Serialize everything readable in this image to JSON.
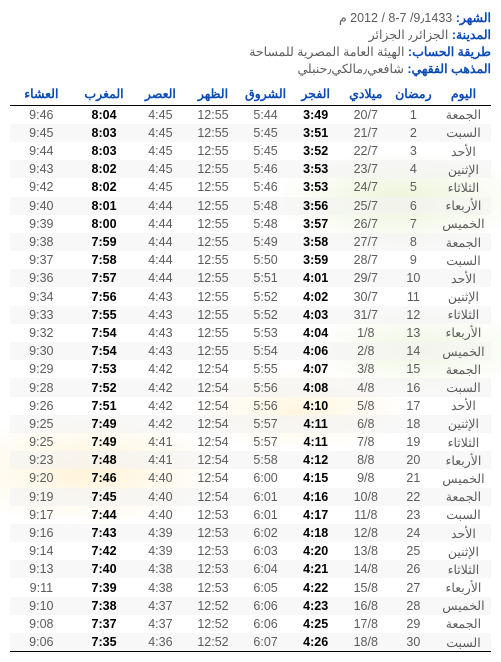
{
  "header": {
    "month_label": "الشهر:",
    "month_value": "9٫1433/ 7-8 / 2012 م",
    "city_label": "المدينة:",
    "city_value": "الجزائر٫ الجزائر",
    "calc_label": "طريقة الحساب:",
    "calc_value": "الهيئة العامة المصرية للمساحة",
    "madhab_label": "المذهب الفقهي:",
    "madhab_value": "شافعي٫مالكي٫حنبلي"
  },
  "columns": [
    "اليوم",
    "رمضان",
    "ميلادي",
    "الفجر",
    "الشروق",
    "الظهر",
    "العصر",
    "المغرب",
    "العشاء"
  ],
  "col_widths": [
    "11%",
    "9%",
    "10%",
    "10%",
    "10%",
    "11%",
    "10%",
    "12.5%",
    "12.5%"
  ],
  "bold_cols": [
    3,
    7
  ],
  "rows": [
    [
      "الجمعة",
      "1",
      "20/7",
      "3:49",
      "5:44",
      "12:55",
      "4:45",
      "8:04",
      "9:46"
    ],
    [
      "السبت",
      "2",
      "21/7",
      "3:51",
      "5:45",
      "12:55",
      "4:45",
      "8:03",
      "9:45"
    ],
    [
      "الأحد",
      "3",
      "22/7",
      "3:52",
      "5:45",
      "12:55",
      "4:45",
      "8:03",
      "9:44"
    ],
    [
      "الإثنين",
      "4",
      "23/7",
      "3:53",
      "5:46",
      "12:55",
      "4:45",
      "8:02",
      "9:43"
    ],
    [
      "الثلاثاء",
      "5",
      "24/7",
      "3:53",
      "5:46",
      "12:55",
      "4:45",
      "8:02",
      "9:42"
    ],
    [
      "الأربعاء",
      "6",
      "25/7",
      "3:56",
      "5:48",
      "12:55",
      "4:44",
      "8:01",
      "9:40"
    ],
    [
      "الخميس",
      "7",
      "26/7",
      "3:57",
      "5:48",
      "12:55",
      "4:44",
      "8:00",
      "9:39"
    ],
    [
      "الجمعة",
      "8",
      "27/7",
      "3:58",
      "5:49",
      "12:55",
      "4:44",
      "7:59",
      "9:38"
    ],
    [
      "السبت",
      "9",
      "28/7",
      "3:59",
      "5:50",
      "12:55",
      "4:44",
      "7:58",
      "9:37"
    ],
    [
      "الأحد",
      "10",
      "29/7",
      "4:01",
      "5:51",
      "12:55",
      "4:44",
      "7:57",
      "9:36"
    ],
    [
      "الإثنين",
      "11",
      "30/7",
      "4:02",
      "5:52",
      "12:55",
      "4:43",
      "7:56",
      "9:34"
    ],
    [
      "الثلاثاء",
      "12",
      "31/7",
      "4:03",
      "5:52",
      "12:55",
      "4:43",
      "7:55",
      "9:33"
    ],
    [
      "الأربعاء",
      "13",
      "1/8",
      "4:04",
      "5:53",
      "12:55",
      "4:43",
      "7:54",
      "9:32"
    ],
    [
      "الخميس",
      "14",
      "2/8",
      "4:06",
      "5:54",
      "12:55",
      "4:43",
      "7:54",
      "9:30"
    ],
    [
      "الجمعة",
      "15",
      "3/8",
      "4:07",
      "5:55",
      "12:54",
      "4:42",
      "7:53",
      "9:29"
    ],
    [
      "السبت",
      "16",
      "4/8",
      "4:08",
      "5:56",
      "12:54",
      "4:42",
      "7:52",
      "9:28"
    ],
    [
      "الأحد",
      "17",
      "5/8",
      "4:10",
      "5:56",
      "12:54",
      "4:42",
      "7:51",
      "9:26"
    ],
    [
      "الإثنين",
      "18",
      "6/8",
      "4:11",
      "5:57",
      "12:54",
      "4:42",
      "7:49",
      "9:25"
    ],
    [
      "الثلاثاء",
      "19",
      "7/8",
      "4:11",
      "5:57",
      "12:54",
      "4:41",
      "7:49",
      "9:25"
    ],
    [
      "الأربعاء",
      "20",
      "8/8",
      "4:12",
      "5:58",
      "12:54",
      "4:41",
      "7:48",
      "9:23"
    ],
    [
      "الخميس",
      "21",
      "9/8",
      "4:15",
      "6:00",
      "12:54",
      "4:40",
      "7:46",
      "9:20"
    ],
    [
      "الجمعة",
      "22",
      "10/8",
      "4:16",
      "6:01",
      "12:54",
      "4:40",
      "7:45",
      "9:19"
    ],
    [
      "السبت",
      "23",
      "11/8",
      "4:17",
      "6:01",
      "12:53",
      "4:40",
      "7:44",
      "9:17"
    ],
    [
      "الأحد",
      "24",
      "12/8",
      "4:18",
      "6:02",
      "12:53",
      "4:39",
      "7:43",
      "9:16"
    ],
    [
      "الإثنين",
      "25",
      "13/8",
      "4:20",
      "6:03",
      "12:53",
      "4:39",
      "7:42",
      "9:14"
    ],
    [
      "الثلاثاء",
      "26",
      "14/8",
      "4:21",
      "6:04",
      "12:53",
      "4:38",
      "7:40",
      "9:13"
    ],
    [
      "الأربعاء",
      "27",
      "15/8",
      "4:22",
      "6:05",
      "12:53",
      "4:38",
      "7:39",
      "9:11"
    ],
    [
      "الخميس",
      "28",
      "16/8",
      "4:23",
      "6:06",
      "12:52",
      "4:37",
      "7:38",
      "9:10"
    ],
    [
      "الجمعة",
      "29",
      "17/8",
      "4:25",
      "6:06",
      "12:52",
      "4:37",
      "7:37",
      "9:08"
    ],
    [
      "السبت",
      "30",
      "18/8",
      "4:26",
      "6:07",
      "12:52",
      "4:36",
      "7:35",
      "9:06"
    ]
  ]
}
